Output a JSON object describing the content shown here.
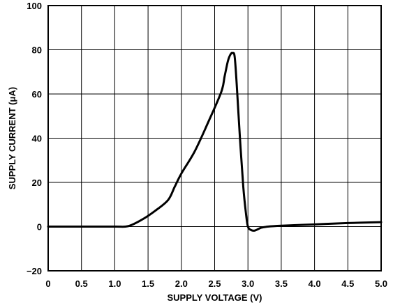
{
  "chart_data": {
    "type": "line",
    "xlabel": "SUPPLY VOLTAGE (V)",
    "ylabel": "SUPPLY CURRENT (μA)",
    "xlim": [
      0,
      5.0
    ],
    "ylim": [
      -20,
      100
    ],
    "xticks": [
      "0",
      "0.5",
      "1.0",
      "1.5",
      "2.0",
      "2.5",
      "3.0",
      "3.5",
      "4.0",
      "4.5",
      "5.0"
    ],
    "yticks": [
      "−20",
      "0",
      "20",
      "40",
      "60",
      "80",
      "100"
    ],
    "grid": true,
    "line_color": "#000000",
    "series": [
      {
        "x": [
          0,
          0.5,
          1.0,
          1.2,
          1.4,
          1.6,
          1.8,
          1.9,
          2.0,
          2.2,
          2.4,
          2.6,
          2.65,
          2.7,
          2.74,
          2.77,
          2.8,
          2.83,
          2.88,
          2.93,
          2.97,
          3.0,
          3.05,
          3.1,
          3.15,
          3.2,
          3.3,
          3.5,
          4.0,
          4.5,
          5.0
        ],
        "y": [
          0,
          0,
          0,
          0.2,
          3,
          7,
          12,
          18,
          24,
          34,
          47,
          61,
          68,
          75,
          78,
          78.5,
          77,
          65,
          40,
          18,
          6,
          0,
          -1.6,
          -1.8,
          -1.2,
          -0.5,
          0,
          0.4,
          1,
          1.6,
          2
        ]
      }
    ]
  }
}
